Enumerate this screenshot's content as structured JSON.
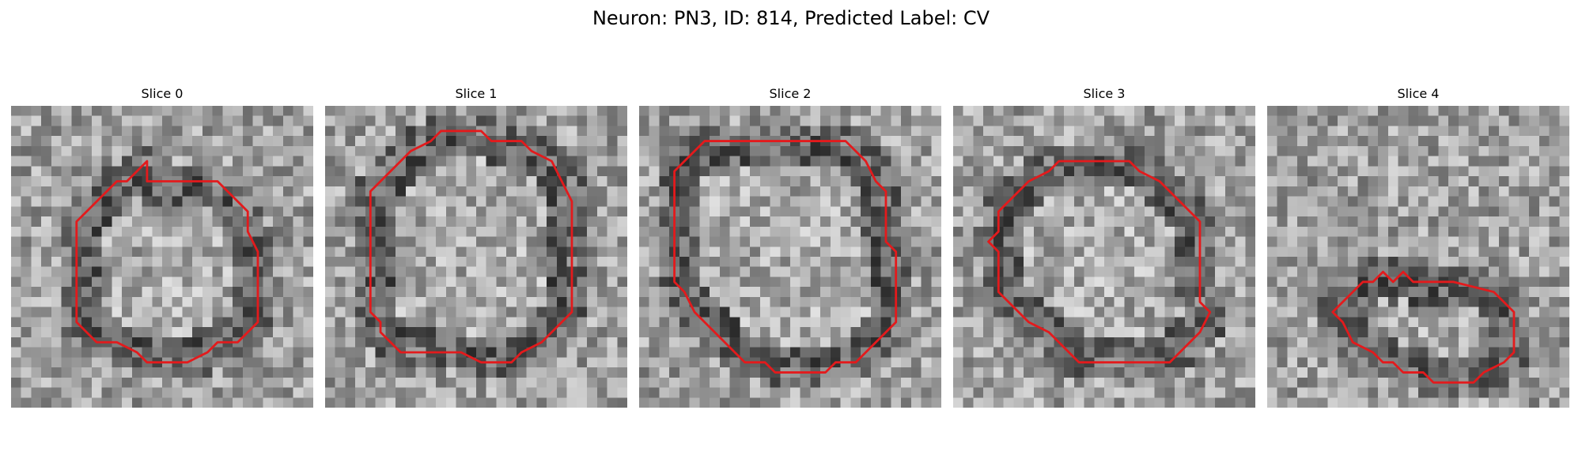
{
  "figure": {
    "title": "Neuron: PN3, ID: 814, Predicted Label: CV"
  },
  "colors": {
    "contour": "#e31a1c",
    "background": "#ffffff"
  },
  "panels": [
    {
      "title": "Slice 0",
      "seed": 11,
      "contour": [
        [
          13.5,
          7.5
        ],
        [
          20.5,
          7.5
        ],
        [
          21.5,
          8.5
        ],
        [
          22.5,
          9.5
        ],
        [
          23.5,
          10.5
        ],
        [
          23.5,
          12.5
        ],
        [
          24.5,
          14.5
        ],
        [
          24.5,
          21.5
        ],
        [
          23.5,
          22.5
        ],
        [
          22.5,
          23.5
        ],
        [
          20.5,
          23.5
        ],
        [
          19.5,
          24.5
        ],
        [
          17.5,
          25.5
        ],
        [
          13.5,
          25.5
        ],
        [
          12.5,
          24.5
        ],
        [
          10.5,
          23.5
        ],
        [
          8.5,
          23.5
        ],
        [
          7.5,
          22.5
        ],
        [
          6.5,
          21.5
        ],
        [
          6.5,
          19.5
        ],
        [
          6.5,
          11.5
        ],
        [
          7.5,
          10.5
        ],
        [
          9.5,
          8.5
        ],
        [
          10.5,
          7.5
        ],
        [
          11.5,
          7.5
        ],
        [
          12.5,
          6.5
        ],
        [
          13.5,
          5.5
        ]
      ]
    },
    {
      "title": "Slice 1",
      "seed": 23,
      "contour": [
        [
          12.5,
          2.5
        ],
        [
          15.5,
          2.5
        ],
        [
          16.5,
          3.5
        ],
        [
          19.5,
          3.5
        ],
        [
          20.5,
          4.5
        ],
        [
          22.5,
          5.5
        ],
        [
          23.5,
          7.5
        ],
        [
          24.5,
          9.5
        ],
        [
          24.5,
          20.5
        ],
        [
          23.5,
          21.5
        ],
        [
          22.5,
          22.5
        ],
        [
          21.5,
          23.5
        ],
        [
          19.5,
          24.5
        ],
        [
          18.5,
          25.5
        ],
        [
          15.5,
          25.5
        ],
        [
          13.5,
          24.5
        ],
        [
          10.5,
          24.5
        ],
        [
          7.5,
          24.5
        ],
        [
          6.5,
          23.5
        ],
        [
          5.5,
          22.5
        ],
        [
          5.5,
          21.5
        ],
        [
          4.5,
          20.5
        ],
        [
          4.5,
          19.5
        ],
        [
          4.5,
          8.5
        ],
        [
          5.5,
          7.5
        ],
        [
          6.5,
          6.5
        ],
        [
          7.5,
          5.5
        ],
        [
          8.5,
          4.5
        ],
        [
          10.5,
          3.5
        ],
        [
          11.5,
          2.5
        ]
      ]
    },
    {
      "title": "Slice 2",
      "seed": 37,
      "contour": [
        [
          7.5,
          3.5
        ],
        [
          20.5,
          3.5
        ],
        [
          21.5,
          4.5
        ],
        [
          22.5,
          5.5
        ],
        [
          23.5,
          7.5
        ],
        [
          24.5,
          8.5
        ],
        [
          24.5,
          13.5
        ],
        [
          25.5,
          14.5
        ],
        [
          25.5,
          21.5
        ],
        [
          24.5,
          22.5
        ],
        [
          23.5,
          23.5
        ],
        [
          22.5,
          24.5
        ],
        [
          21.5,
          25.5
        ],
        [
          19.5,
          25.5
        ],
        [
          18.5,
          26.5
        ],
        [
          16.5,
          26.5
        ],
        [
          15.5,
          26.5
        ],
        [
          13.5,
          26.5
        ],
        [
          12.5,
          25.5
        ],
        [
          10.5,
          25.5
        ],
        [
          9.5,
          24.5
        ],
        [
          7.5,
          22.5
        ],
        [
          5.5,
          20.5
        ],
        [
          4.5,
          18.5
        ],
        [
          3.5,
          17.5
        ],
        [
          3.5,
          6.5
        ],
        [
          4.5,
          5.5
        ],
        [
          5.5,
          4.5
        ],
        [
          6.5,
          3.5
        ]
      ]
    },
    {
      "title": "Slice 3",
      "seed": 41,
      "contour": [
        [
          10.5,
          5.5
        ],
        [
          17.5,
          5.5
        ],
        [
          18.5,
          6.5
        ],
        [
          20.5,
          7.5
        ],
        [
          21.5,
          8.5
        ],
        [
          22.5,
          9.5
        ],
        [
          24.5,
          11.5
        ],
        [
          24.5,
          19.5
        ],
        [
          25.5,
          20.5
        ],
        [
          24.5,
          22.5
        ],
        [
          23.5,
          23.5
        ],
        [
          22.5,
          24.5
        ],
        [
          21.5,
          25.5
        ],
        [
          12.5,
          25.5
        ],
        [
          11.5,
          24.5
        ],
        [
          10.5,
          23.5
        ],
        [
          9.5,
          22.5
        ],
        [
          7.5,
          21.5
        ],
        [
          6.5,
          20.5
        ],
        [
          5.5,
          19.5
        ],
        [
          4.5,
          18.5
        ],
        [
          4.5,
          15.5
        ],
        [
          4.5,
          14.5
        ],
        [
          3.5,
          13.5
        ],
        [
          4.5,
          12.5
        ],
        [
          4.5,
          11.5
        ],
        [
          4.5,
          10.5
        ],
        [
          5.5,
          9.5
        ],
        [
          6.5,
          8.5
        ],
        [
          7.5,
          7.5
        ],
        [
          9.5,
          6.5
        ]
      ]
    },
    {
      "title": "Slice 4",
      "seed": 53,
      "contour": [
        [
          9.5,
          17.5
        ],
        [
          10.5,
          17.5
        ],
        [
          11.5,
          16.5
        ],
        [
          12.5,
          17.5
        ],
        [
          13.5,
          16.5
        ],
        [
          14.5,
          17.5
        ],
        [
          16.5,
          17.5
        ],
        [
          18.5,
          17.5
        ],
        [
          22.5,
          18.5
        ],
        [
          23.5,
          19.5
        ],
        [
          24.5,
          20.5
        ],
        [
          24.5,
          24.5
        ],
        [
          23.5,
          25.5
        ],
        [
          21.5,
          26.5
        ],
        [
          20.5,
          27.5
        ],
        [
          16.5,
          27.5
        ],
        [
          15.5,
          26.5
        ],
        [
          13.5,
          26.5
        ],
        [
          12.5,
          25.5
        ],
        [
          11.5,
          25.5
        ],
        [
          10.5,
          24.5
        ],
        [
          8.5,
          23.5
        ],
        [
          7.5,
          21.5
        ],
        [
          6.5,
          20.5
        ],
        [
          7.5,
          19.5
        ],
        [
          8.5,
          18.5
        ]
      ]
    }
  ]
}
